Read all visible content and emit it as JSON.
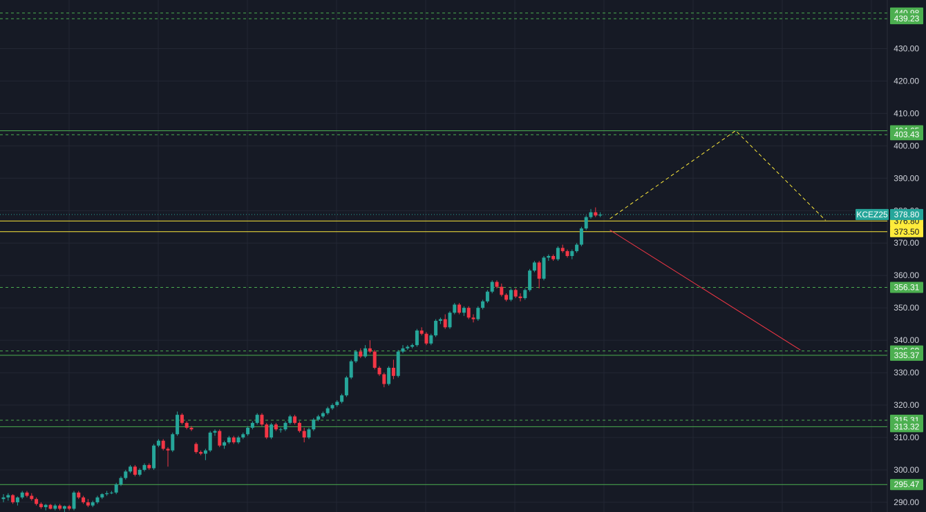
{
  "chart_data": {
    "type": "candlestick",
    "symbol": "KCEZ25",
    "last_price": "378.80",
    "ylim": [
      287,
      445
    ],
    "y_ticks": [
      "290.00",
      "300.00",
      "310.00",
      "320.00",
      "330.00",
      "340.00",
      "350.00",
      "360.00",
      "370.00",
      "380.00",
      "390.00",
      "400.00",
      "410.00",
      "420.00",
      "430.00"
    ],
    "colors": {
      "background": "#161a25",
      "grid": "#232734",
      "up": "#26a69a",
      "down": "#f23645",
      "level": "#4caf50",
      "yellow": "#ffeb3b",
      "projection": "#f23645",
      "symbol_tag": "#26a69a"
    },
    "levels": [
      {
        "price": 440.98,
        "label": "440.98",
        "style": "dashed",
        "color": "#4caf50"
      },
      {
        "price": 439.23,
        "label": "439.23",
        "style": "dashed",
        "color": "#4caf50"
      },
      {
        "price": 404.65,
        "label": "404.65",
        "style": "solid",
        "color": "#4caf50"
      },
      {
        "price": 403.43,
        "label": "403.43",
        "style": "dashed",
        "color": "#4caf50"
      },
      {
        "price": 376.8,
        "label": "376.80",
        "style": "solid",
        "color": "#ffeb3b"
      },
      {
        "price": 373.5,
        "label": "373.50",
        "style": "solid",
        "color": "#ffeb3b"
      },
      {
        "price": 356.31,
        "label": "356.31",
        "style": "dashed",
        "color": "#4caf50"
      },
      {
        "price": 336.69,
        "label": "336.69",
        "style": "dashed",
        "color": "#4caf50"
      },
      {
        "price": 335.37,
        "label": "335.37",
        "style": "solid",
        "color": "#4caf50"
      },
      {
        "price": 315.31,
        "label": "315.31",
        "style": "dashed",
        "color": "#4caf50"
      },
      {
        "price": 313.32,
        "label": "313.32",
        "style": "solid",
        "color": "#4caf50"
      },
      {
        "price": 295.47,
        "label": "295.47",
        "style": "solid",
        "color": "#4caf50"
      }
    ],
    "projections": [
      {
        "style": "dashed",
        "color": "#ffeb3b",
        "points": [
          [
            0,
            377.5
          ],
          [
            35,
            404.7
          ],
          [
            60,
            377.0
          ]
        ]
      },
      {
        "style": "solid",
        "color": "#f23645",
        "points": [
          [
            0,
            374.0
          ],
          [
            53,
            337.0
          ]
        ]
      }
    ],
    "candles": [
      [
        291.0,
        292.5,
        290.0,
        291.5
      ],
      [
        291.5,
        292.8,
        290.5,
        292.2
      ],
      [
        292.2,
        292.5,
        289.5,
        290.0
      ],
      [
        290.0,
        291.8,
        289.0,
        291.5
      ],
      [
        291.5,
        293.5,
        291.0,
        293.0
      ],
      [
        293.0,
        293.5,
        291.5,
        292.0
      ],
      [
        292.0,
        292.8,
        290.5,
        291.0
      ],
      [
        291.0,
        291.5,
        289.0,
        289.5
      ],
      [
        289.5,
        290.0,
        288.0,
        288.5
      ],
      [
        288.5,
        289.5,
        287.5,
        289.2
      ],
      [
        289.2,
        289.5,
        287.8,
        288.0
      ],
      [
        288.0,
        289.5,
        287.5,
        289.0
      ],
      [
        289.0,
        289.5,
        287.5,
        288.0
      ],
      [
        288.0,
        289.0,
        287.0,
        288.8
      ],
      [
        288.8,
        289.2,
        287.5,
        288.0
      ],
      [
        288.0,
        293.5,
        287.5,
        293.0
      ],
      [
        293.0,
        293.5,
        291.0,
        291.5
      ],
      [
        291.5,
        292.0,
        289.5,
        290.0
      ],
      [
        290.0,
        291.0,
        288.5,
        289.0
      ],
      [
        289.0,
        290.5,
        288.5,
        290.0
      ],
      [
        290.0,
        292.0,
        289.5,
        291.5
      ],
      [
        291.5,
        292.8,
        291.0,
        292.5
      ],
      [
        292.5,
        293.5,
        292.0,
        292.8
      ],
      [
        292.8,
        293.5,
        292.5,
        293.0
      ],
      [
        293.0,
        296.0,
        292.5,
        295.5
      ],
      [
        295.5,
        298.0,
        295.0,
        297.5
      ],
      [
        297.5,
        300.0,
        297.0,
        299.5
      ],
      [
        299.5,
        301.5,
        299.0,
        301.0
      ],
      [
        301.0,
        301.5,
        298.0,
        298.5
      ],
      [
        298.5,
        300.5,
        298.0,
        300.0
      ],
      [
        300.0,
        302.0,
        299.5,
        301.5
      ],
      [
        301.5,
        302.0,
        300.0,
        300.5
      ],
      [
        300.5,
        308.0,
        300.0,
        307.5
      ],
      [
        307.5,
        309.5,
        307.0,
        309.0
      ],
      [
        309.0,
        309.5,
        306.0,
        306.5
      ],
      [
        306.5,
        307.0,
        301.0,
        306.0
      ],
      [
        306.0,
        311.5,
        305.5,
        311.0
      ],
      [
        311.0,
        318.0,
        310.5,
        317.0
      ],
      [
        317.0,
        317.5,
        314.0,
        314.5
      ],
      [
        314.5,
        315.0,
        312.5,
        313.0
      ],
      [
        313.0,
        313.5,
        312.0,
        312.5
      ],
      [
        308.0,
        308.5,
        305.0,
        305.5
      ],
      [
        305.5,
        306.0,
        304.5,
        305.0
      ],
      [
        305.0,
        306.5,
        303.0,
        306.0
      ],
      [
        306.0,
        312.0,
        305.5,
        311.5
      ],
      [
        311.5,
        312.5,
        310.5,
        312.0
      ],
      [
        312.0,
        312.5,
        307.0,
        307.5
      ],
      [
        307.5,
        309.0,
        306.5,
        308.5
      ],
      [
        308.5,
        310.5,
        308.0,
        310.0
      ],
      [
        310.0,
        310.5,
        308.0,
        308.5
      ],
      [
        308.5,
        310.5,
        308.0,
        310.0
      ],
      [
        310.0,
        311.5,
        309.5,
        311.0
      ],
      [
        311.0,
        313.5,
        310.5,
        313.0
      ],
      [
        313.0,
        315.0,
        312.5,
        314.5
      ],
      [
        314.5,
        317.5,
        314.0,
        317.0
      ],
      [
        317.0,
        317.5,
        313.5,
        314.0
      ],
      [
        314.0,
        314.5,
        309.5,
        310.0
      ],
      [
        310.0,
        314.5,
        309.5,
        314.0
      ],
      [
        314.0,
        314.5,
        312.0,
        312.5
      ],
      [
        312.5,
        313.0,
        311.5,
        312.5
      ],
      [
        312.5,
        315.0,
        312.0,
        314.5
      ],
      [
        314.5,
        317.0,
        314.0,
        316.5
      ],
      [
        316.5,
        317.0,
        314.0,
        314.5
      ],
      [
        314.5,
        315.0,
        311.5,
        312.0
      ],
      [
        312.0,
        313.0,
        308.5,
        310.0
      ],
      [
        310.0,
        313.0,
        309.5,
        312.5
      ],
      [
        312.5,
        316.0,
        312.0,
        315.5
      ],
      [
        315.5,
        317.0,
        315.0,
        316.5
      ],
      [
        316.5,
        318.0,
        316.0,
        317.5
      ],
      [
        317.5,
        319.5,
        317.0,
        319.0
      ],
      [
        319.0,
        320.5,
        318.5,
        320.0
      ],
      [
        320.0,
        321.5,
        319.5,
        321.0
      ],
      [
        321.0,
        323.5,
        320.5,
        323.0
      ],
      [
        323.0,
        329.0,
        322.5,
        328.5
      ],
      [
        328.5,
        334.0,
        328.0,
        333.5
      ],
      [
        333.5,
        337.0,
        333.0,
        336.5
      ],
      [
        336.5,
        337.5,
        334.5,
        335.0
      ],
      [
        335.0,
        338.5,
        334.5,
        337.5
      ],
      [
        337.5,
        340.0,
        336.0,
        336.5
      ],
      [
        336.5,
        337.0,
        331.0,
        331.5
      ],
      [
        331.5,
        332.0,
        329.0,
        329.5
      ],
      [
        329.5,
        330.0,
        325.5,
        326.5
      ],
      [
        326.5,
        332.0,
        326.0,
        331.5
      ],
      [
        331.5,
        334.0,
        328.0,
        329.0
      ],
      [
        329.0,
        337.0,
        328.5,
        336.5
      ],
      [
        336.5,
        338.5,
        336.0,
        337.5
      ],
      [
        337.5,
        338.5,
        337.0,
        338.0
      ],
      [
        338.0,
        339.0,
        337.5,
        338.5
      ],
      [
        338.5,
        343.5,
        338.0,
        343.0
      ],
      [
        343.0,
        344.0,
        341.5,
        342.0
      ],
      [
        342.0,
        342.5,
        338.5,
        339.0
      ],
      [
        339.0,
        342.0,
        338.5,
        341.5
      ],
      [
        341.5,
        346.5,
        341.0,
        346.0
      ],
      [
        346.0,
        347.0,
        345.0,
        346.5
      ],
      [
        346.5,
        348.0,
        343.5,
        344.0
      ],
      [
        344.0,
        349.0,
        343.5,
        348.5
      ],
      [
        348.5,
        351.5,
        348.0,
        351.0
      ],
      [
        351.0,
        351.5,
        348.0,
        348.5
      ],
      [
        348.5,
        350.5,
        347.5,
        350.0
      ],
      [
        350.0,
        350.5,
        346.5,
        347.0
      ],
      [
        347.0,
        348.0,
        345.5,
        346.5
      ],
      [
        346.5,
        350.5,
        346.0,
        350.0
      ],
      [
        350.0,
        352.5,
        349.5,
        352.0
      ],
      [
        352.0,
        355.5,
        351.5,
        355.0
      ],
      [
        355.0,
        358.5,
        354.5,
        358.0
      ],
      [
        358.0,
        358.5,
        356.0,
        356.5
      ],
      [
        356.5,
        357.5,
        353.5,
        354.0
      ],
      [
        354.0,
        354.5,
        352.0,
        352.5
      ],
      [
        352.5,
        356.0,
        352.0,
        355.5
      ],
      [
        355.5,
        356.0,
        353.0,
        353.5
      ],
      [
        353.5,
        354.5,
        352.0,
        353.0
      ],
      [
        353.0,
        356.0,
        352.5,
        355.5
      ],
      [
        355.5,
        362.0,
        355.0,
        361.5
      ],
      [
        361.5,
        364.5,
        361.0,
        364.0
      ],
      [
        364.0,
        364.5,
        356.0,
        359.0
      ],
      [
        359.0,
        366.0,
        358.5,
        365.5
      ],
      [
        365.5,
        366.5,
        364.5,
        366.0
      ],
      [
        366.0,
        366.5,
        364.5,
        365.0
      ],
      [
        365.0,
        369.0,
        364.5,
        368.5
      ],
      [
        368.5,
        369.5,
        367.0,
        367.5
      ],
      [
        367.5,
        368.0,
        365.5,
        366.0
      ],
      [
        366.0,
        368.0,
        365.0,
        367.5
      ],
      [
        367.5,
        370.0,
        367.0,
        369.5
      ],
      [
        369.5,
        375.0,
        369.0,
        374.5
      ],
      [
        374.5,
        378.5,
        374.0,
        378.0
      ],
      [
        378.0,
        380.5,
        377.5,
        379.5
      ],
      [
        379.5,
        381.0,
        378.0,
        378.5
      ],
      [
        378.5,
        379.5,
        378.0,
        378.8
      ]
    ]
  }
}
